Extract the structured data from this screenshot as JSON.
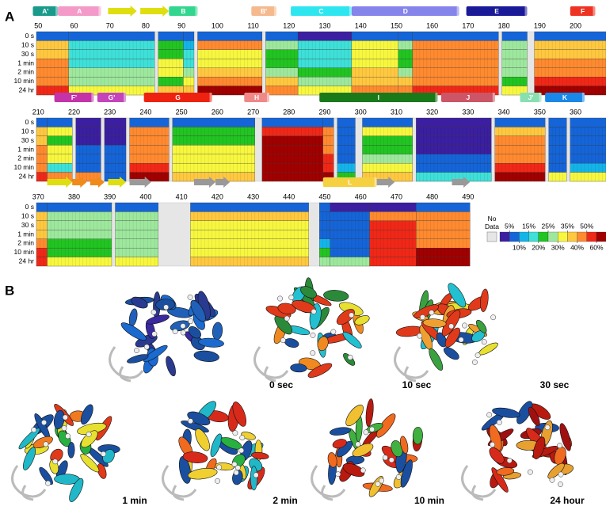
{
  "panel_a": {
    "label": "A",
    "time_points": [
      "0 s",
      "10 s",
      "30 s",
      "1 min",
      "2 min",
      "10 min",
      "24 hr"
    ],
    "rows": [
      {
        "xlim": [
          49.5,
          208.5
        ],
        "ticks": [
          50,
          60,
          70,
          80,
          90,
          100,
          110,
          120,
          130,
          140,
          150,
          160,
          170,
          180,
          190,
          200
        ],
        "elements": [
          {
            "label": "A'",
            "start": 49,
            "end": 55,
            "color": "#1a9a8a",
            "kind": "helix"
          },
          {
            "label": "A",
            "start": 56,
            "end": 67,
            "color": "#f49ac8",
            "kind": "helix"
          },
          {
            "start": 70,
            "end": 77,
            "color": "#dede10",
            "kind": "strand"
          },
          {
            "start": 79,
            "end": 86,
            "color": "#dede10",
            "kind": "strand"
          },
          {
            "label": "B",
            "start": 87,
            "end": 94,
            "color": "#33d68e",
            "kind": "helix"
          },
          {
            "label": "B'",
            "start": 110,
            "end": 116,
            "color": "#f5b98e",
            "kind": "helix"
          },
          {
            "label": "C",
            "start": 121,
            "end": 137,
            "color": "#2ee6f0",
            "kind": "helix"
          },
          {
            "label": "D",
            "start": 138,
            "end": 167,
            "color": "#8484ea",
            "kind": "helix"
          },
          {
            "label": "E",
            "start": 170,
            "end": 186,
            "color": "#1a1a99",
            "kind": "helix"
          },
          {
            "label": "F",
            "start": 199,
            "end": 205,
            "color": "#ee3322",
            "kind": "helix"
          }
        ],
        "segments": [
          {
            "start": 50,
            "end": 58,
            "uptake": [
              7,
              37,
              37,
              45,
              45,
              45,
              55
            ]
          },
          {
            "start": 59,
            "end": 82,
            "uptake": [
              7,
              17,
              17,
              17,
              27,
              27,
              32
            ]
          },
          {
            "start": 84,
            "end": 90,
            "uptake": [
              7,
              22,
              22,
              32,
              32,
              22,
              37
            ]
          },
          {
            "start": 91,
            "end": 93,
            "uptake": [
              7,
              12,
              17,
              17,
              27,
              32,
              37
            ]
          },
          {
            "start": 95,
            "end": 112,
            "uptake": [
              7,
              40,
              32,
              32,
              35,
              45,
              60
            ]
          },
          {
            "start": 114,
            "end": 122,
            "uptake": [
              7,
              27,
              22,
              22,
              27,
              37,
              45
            ]
          },
          {
            "start": 123,
            "end": 137,
            "uptake": [
              3,
              15,
              15,
              17,
              22,
              27,
              32
            ]
          },
          {
            "start": 138,
            "end": 150,
            "uptake": [
              7,
              32,
              32,
              32,
              37,
              37,
              45
            ]
          },
          {
            "start": 151,
            "end": 154,
            "uptake": [
              7,
              27,
              22,
              22,
              27,
              37,
              45
            ]
          },
          {
            "start": 155,
            "end": 178,
            "uptake": [
              7,
              40,
              40,
              40,
              45,
              45,
              55
            ]
          },
          {
            "start": 180,
            "end": 186,
            "uptake": [
              7,
              27,
              27,
              27,
              27,
              22,
              32
            ]
          },
          {
            "start": 189,
            "end": 208,
            "uptake": [
              7,
              37,
              35,
              40,
              45,
              55,
              60
            ]
          }
        ]
      },
      {
        "xlim": [
          209.5,
          368.5
        ],
        "ticks": [
          210,
          220,
          230,
          240,
          250,
          260,
          270,
          280,
          290,
          300,
          310,
          320,
          330,
          340,
          350,
          360
        ],
        "elements": [
          {
            "label": "F'",
            "start": 215,
            "end": 225,
            "color": "#c433aa",
            "kind": "helix"
          },
          {
            "label": "G'",
            "start": 227,
            "end": 234,
            "color": "#c444bb",
            "kind": "helix"
          },
          {
            "label": "G",
            "start": 240,
            "end": 258,
            "color": "#ee2211",
            "kind": "helix"
          },
          {
            "label": "H",
            "start": 268,
            "end": 274,
            "color": "#f08888",
            "kind": "helix"
          },
          {
            "label": "I",
            "start": 289,
            "end": 321,
            "color": "#1a7a1a",
            "kind": "helix"
          },
          {
            "label": "J",
            "start": 323,
            "end": 337,
            "color": "#cc5566",
            "kind": "helix"
          },
          {
            "label": "J'",
            "start": 345,
            "end": 350,
            "color": "#88e0b0",
            "kind": "helix"
          },
          {
            "label": "K",
            "start": 352,
            "end": 362,
            "color": "#1a88e8",
            "kind": "helix"
          }
        ],
        "segments": [
          {
            "start": 210,
            "end": 212,
            "uptake": [
              7,
              37,
              37,
              40,
              40,
              45,
              55
            ]
          },
          {
            "start": 213,
            "end": 219,
            "uptake": [
              7,
              32,
              22,
              32,
              32,
              17,
              45
            ]
          },
          {
            "start": 221,
            "end": 227,
            "uptake": [
              3,
              3,
              3,
              7,
              7,
              7,
              45
            ]
          },
          {
            "start": 229,
            "end": 234,
            "uptake": [
              3,
              3,
              3,
              7,
              7,
              7,
              7
            ]
          },
          {
            "start": 236,
            "end": 246,
            "uptake": [
              7,
              45,
              45,
              45,
              45,
              55,
              60
            ]
          },
          {
            "start": 248,
            "end": 270,
            "uptake": [
              7,
              22,
              22,
              32,
              32,
              32,
              37
            ]
          },
          {
            "start": 273,
            "end": 289,
            "uptake": [
              7,
              55,
              65,
              65,
              65,
              65,
              65
            ]
          },
          {
            "start": 290,
            "end": 292,
            "uptake": [
              7,
              45,
              45,
              45,
              55,
              55,
              65
            ]
          },
          {
            "start": 294,
            "end": 298,
            "uptake": [
              7,
              7,
              7,
              7,
              7,
              12,
              22
            ]
          },
          {
            "start": 301,
            "end": 314,
            "uptake": [
              7,
              32,
              22,
              22,
              27,
              32,
              37
            ]
          },
          {
            "start": 316,
            "end": 336,
            "uptake": [
              3,
              3,
              3,
              3,
              7,
              7,
              15
            ]
          },
          {
            "start": 338,
            "end": 351,
            "uptake": [
              7,
              37,
              40,
              40,
              45,
              55,
              60
            ]
          },
          {
            "start": 353,
            "end": 357,
            "uptake": [
              7,
              7,
              7,
              7,
              7,
              7,
              32
            ]
          },
          {
            "start": 359,
            "end": 368,
            "uptake": [
              7,
              7,
              7,
              7,
              7,
              12,
              32
            ]
          }
        ]
      },
      {
        "xlim": [
          369.5,
          528.5
        ],
        "ticks": [
          370,
          380,
          390,
          400,
          410,
          420,
          430,
          440,
          450,
          460,
          470,
          480,
          490
        ],
        "elements": [
          {
            "start": 373,
            "end": 379,
            "color": "#dede10",
            "kind": "strand"
          },
          {
            "start": 380,
            "end": 383,
            "color": "#f08a1a",
            "kind": "strand"
          },
          {
            "start": 385,
            "end": 388,
            "color": "#f08a1a",
            "kind": "strand"
          },
          {
            "start": 390,
            "end": 394,
            "color": "#dede10",
            "kind": "strand"
          },
          {
            "start": 396,
            "end": 401,
            "color": "#999999",
            "kind": "strand"
          },
          {
            "start": 414,
            "end": 419,
            "color": "#999999",
            "kind": "strand"
          },
          {
            "start": 420,
            "end": 423,
            "color": "#999999",
            "kind": "strand"
          },
          {
            "label": "L",
            "start": 450,
            "end": 464,
            "color": "#f5d040",
            "kind": "helix"
          },
          {
            "start": 465,
            "end": 469,
            "color": "#999999",
            "kind": "strand"
          },
          {
            "start": 486,
            "end": 490,
            "color": "#999999",
            "kind": "strand"
          }
        ],
        "segments": [
          {
            "start": 370,
            "end": 372,
            "uptake": [
              7,
              37,
              37,
              37,
              45,
              55,
              55
            ]
          },
          {
            "start": 373,
            "end": 390,
            "uptake": [
              7,
              27,
              27,
              27,
              22,
              22,
              32
            ]
          },
          {
            "start": 392,
            "end": 403,
            "uptake": [
              7,
              27,
              27,
              27,
              27,
              27,
              32
            ]
          },
          {
            "start": 413,
            "end": 445,
            "uptake": [
              7,
              35,
              32,
              32,
              32,
              32,
              37
            ]
          },
          {
            "start": 449,
            "end": 451,
            "uptake": [
              7,
              7,
              7,
              7,
              12,
              22,
              27
            ]
          },
          {
            "start": 452,
            "end": 462,
            "uptake": [
              3,
              7,
              7,
              7,
              7,
              7,
              27
            ]
          },
          {
            "start": 463,
            "end": 475,
            "uptake": [
              3,
              45,
              55,
              55,
              55,
              55,
              55
            ]
          },
          {
            "start": 476,
            "end": 490,
            "uptake": [
              7,
              45,
              40,
              45,
              45,
              65,
              65
            ]
          }
        ]
      }
    ],
    "legend": {
      "no_data_label": "No Data",
      "no_data_color": "#e6e6e6",
      "colors": [
        "#3b1fa0",
        "#1565d8",
        "#15b4e8",
        "#3ee0d8",
        "#22c422",
        "#9ee89e",
        "#f7f740",
        "#ffc840",
        "#ff8a30",
        "#f02818",
        "#a00000"
      ],
      "boundaries": [
        {
          "value": 5,
          "label": "5%"
        },
        {
          "value": 10,
          "label": "10%"
        },
        {
          "value": 15,
          "label": "15%"
        },
        {
          "value": 20,
          "label": "20%"
        },
        {
          "value": 25,
          "label": "25%"
        },
        {
          "value": 30,
          "label": "30%"
        },
        {
          "value": 35,
          "label": "35%"
        },
        {
          "value": 40,
          "label": "40%"
        },
        {
          "value": 50,
          "label": "50%"
        },
        {
          "value": 60,
          "label": "60%"
        }
      ]
    }
  },
  "panel_b": {
    "label": "B",
    "captions": [
      "0 sec",
      "10 sec",
      "30 sec",
      "1 min",
      "2 min",
      "10 min",
      "24 hour"
    ]
  }
}
